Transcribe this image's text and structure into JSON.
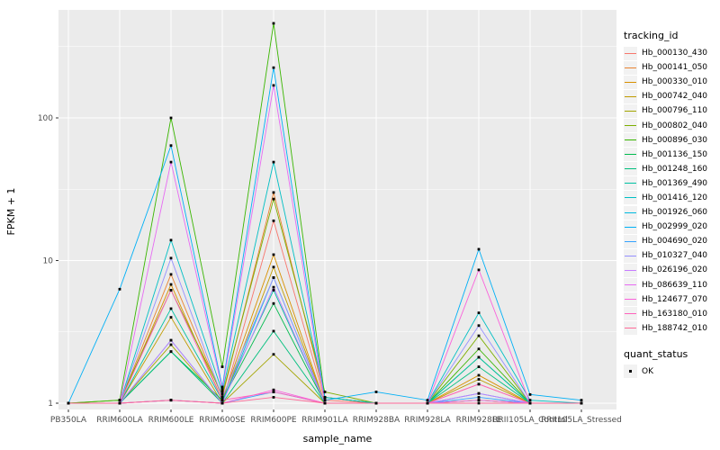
{
  "figure": {
    "background": "#FFFFFF",
    "panel_background": "#EBEBEB",
    "grid_color": "#FFFFFF",
    "tick_color": "#333333",
    "tick_label_color": "#4D4D4D",
    "point_color": "#000000"
  },
  "axes": {
    "x_title": "sample_name",
    "y_title": "FPKM + 1",
    "y_tick_labels": [
      "1",
      "10",
      "100"
    ]
  },
  "legend": {
    "tracking_title": "tracking_id",
    "quant_title": "quant_status",
    "quant_items": [
      {
        "label": "OK"
      }
    ]
  },
  "chart_data": {
    "type": "line",
    "title": "",
    "xlabel": "sample_name",
    "ylabel": "FPKM + 1",
    "y_scale": "log10",
    "y_ticks": [
      1,
      10,
      100
    ],
    "y_minor_ticks": [
      3.1623,
      31.623,
      316.23
    ],
    "ylim": [
      1,
      570
    ],
    "grid": true,
    "legend_position": "right",
    "point_marker": "small black square",
    "quant_status": "OK",
    "categories": [
      "PB350LA",
      "RRIM600LA",
      "RRIM600LE",
      "RRIM600SE",
      "RRIM600PE",
      "RRIM901LA",
      "RRIM928BA",
      "RRIM928LA",
      "RRIM928LE",
      "RRII105LA_Control",
      "RRII105LA_Stressed"
    ],
    "series": [
      {
        "name": "Hb_000130_430",
        "color": "#F8766D",
        "values": [
          1,
          1,
          1.05,
          1,
          19,
          1.05,
          1,
          1,
          1.36,
          1,
          1
        ]
      },
      {
        "name": "Hb_000141_050",
        "color": "#EA8331",
        "values": [
          1,
          1,
          8,
          1.1,
          30,
          1.1,
          1,
          1,
          1.05,
          1,
          1
        ]
      },
      {
        "name": "Hb_000330_010",
        "color": "#D89000",
        "values": [
          1,
          1,
          6.8,
          1.05,
          11,
          1,
          1,
          1,
          1.57,
          1,
          1
        ]
      },
      {
        "name": "Hb_000742_040",
        "color": "#C09B00",
        "values": [
          1,
          1,
          4,
          1,
          9,
          1,
          1,
          1,
          1.47,
          1,
          1
        ]
      },
      {
        "name": "Hb_000796_110",
        "color": "#A3A500",
        "values": [
          1,
          1,
          2.57,
          1,
          2.2,
          1,
          1,
          1,
          1.05,
          1,
          1
        ]
      },
      {
        "name": "Hb_000802_040",
        "color": "#7CAE00",
        "values": [
          1,
          1.05,
          6.2,
          1.15,
          27,
          1.2,
          1,
          1,
          2.97,
          1,
          1
        ]
      },
      {
        "name": "Hb_000896_030",
        "color": "#39B600",
        "values": [
          1,
          1.05,
          100,
          1.8,
          460,
          1.1,
          1,
          1,
          2.4,
          1,
          1
        ]
      },
      {
        "name": "Hb_001136_150",
        "color": "#00BB4E",
        "values": [
          1,
          1,
          2.3,
          1.05,
          5,
          1,
          1,
          1,
          2.1,
          1,
          1
        ]
      },
      {
        "name": "Hb_001248_160",
        "color": "#00BF7D",
        "values": [
          1,
          1,
          2.3,
          1,
          3.2,
          1,
          1,
          1,
          1.8,
          1,
          1
        ]
      },
      {
        "name": "Hb_001369_490",
        "color": "#00C1A3",
        "values": [
          1,
          1,
          4.6,
          1.05,
          6.2,
          1,
          1,
          1,
          2.1,
          1,
          1
        ]
      },
      {
        "name": "Hb_001416_120",
        "color": "#00BFC4",
        "values": [
          1,
          1,
          13.9,
          1.2,
          49,
          1.1,
          1,
          1,
          4.3,
          1.05,
          1
        ]
      },
      {
        "name": "Hb_001926_060",
        "color": "#00BAE0",
        "values": [
          1,
          1,
          2.76,
          1,
          7.6,
          1,
          1,
          1,
          1.17,
          1,
          1
        ]
      },
      {
        "name": "Hb_002999_020",
        "color": "#00B0F6",
        "values": [
          1,
          6.3,
          64,
          1.3,
          225,
          1.05,
          1.2,
          1.05,
          12,
          1.15,
          1.05
        ]
      },
      {
        "name": "Hb_004690_020",
        "color": "#35A2FF",
        "values": [
          1,
          1,
          1.05,
          1,
          1.2,
          1,
          1,
          1,
          1.1,
          1,
          1
        ]
      },
      {
        "name": "Hb_010327_040",
        "color": "#9590FF",
        "values": [
          1,
          1,
          10.4,
          1.1,
          7.6,
          1,
          1,
          1,
          3.5,
          1,
          1
        ]
      },
      {
        "name": "Hb_026196_020",
        "color": "#C77CFF",
        "values": [
          1,
          1,
          2.76,
          1,
          6.5,
          1,
          1,
          1,
          1.17,
          1,
          1
        ]
      },
      {
        "name": "Hb_086639_110",
        "color": "#E76BF3",
        "values": [
          1,
          1,
          49,
          1.25,
          169,
          1,
          1,
          1,
          1.05,
          1,
          1
        ]
      },
      {
        "name": "Hb_124677_070",
        "color": "#FA62DB",
        "values": [
          1,
          1,
          1.05,
          1,
          1.24,
          1,
          1,
          1,
          8.6,
          1,
          1
        ]
      },
      {
        "name": "Hb_163180_010",
        "color": "#FF62BC",
        "values": [
          1,
          1,
          6.2,
          1.05,
          1.2,
          1,
          1,
          1,
          1.36,
          1,
          1
        ]
      },
      {
        "name": "Hb_188742_010",
        "color": "#FF6A98",
        "values": [
          1,
          1,
          1.05,
          1,
          1.1,
          1,
          1,
          1,
          1,
          1,
          1
        ]
      }
    ]
  }
}
